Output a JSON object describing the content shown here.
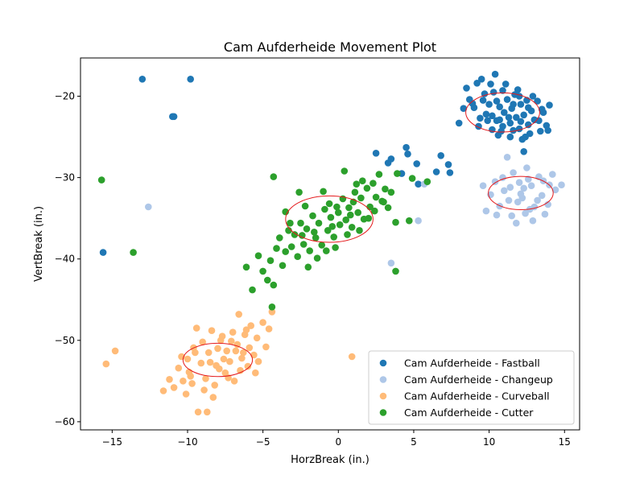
{
  "chart_data": {
    "type": "scatter",
    "title": "Cam Aufderheide Movement Plot",
    "xlabel": "HorzBreak (in.)",
    "ylabel": "VertBreak (in.)",
    "xlim": [
      -17.1,
      16.0
    ],
    "ylim": [
      -61.0,
      -15.3
    ],
    "xticks": [
      -15,
      -10,
      -5,
      0,
      5,
      10,
      15
    ],
    "xtick_labels": [
      "−15",
      "−10",
      "−5",
      "0",
      "5",
      "10",
      "15"
    ],
    "yticks": [
      -60,
      -50,
      -40,
      -30,
      -20
    ],
    "ytick_labels": [
      "−60",
      "−50",
      "−40",
      "−30",
      "−20"
    ],
    "grid": false,
    "legend_position": "lower-right",
    "series": [
      {
        "name": "Cam Aufderheide - Fastball",
        "color": "#1f77b4",
        "points": [
          [
            -13.0,
            -17.9
          ],
          [
            -9.8,
            -17.9
          ],
          [
            -11.0,
            -22.5
          ],
          [
            -10.9,
            -22.5
          ],
          [
            -15.6,
            -39.2
          ],
          [
            2.5,
            -27.0
          ],
          [
            3.3,
            -28.2
          ],
          [
            3.5,
            -27.7
          ],
          [
            4.5,
            -26.3
          ],
          [
            4.6,
            -27.1
          ],
          [
            4.2,
            -29.5
          ],
          [
            5.2,
            -28.3
          ],
          [
            5.3,
            -30.8
          ],
          [
            6.5,
            -29.3
          ],
          [
            6.8,
            -27.3
          ],
          [
            7.3,
            -28.4
          ],
          [
            7.4,
            -29.4
          ],
          [
            12.3,
            -26.8
          ],
          [
            8.0,
            -23.3
          ],
          [
            8.3,
            -21.5
          ],
          [
            8.5,
            -19.0
          ],
          [
            8.7,
            -20.4
          ],
          [
            9.2,
            -18.4
          ],
          [
            9.5,
            -17.9
          ],
          [
            9.6,
            -20.5
          ],
          [
            9.8,
            -22.2
          ],
          [
            10.1,
            -18.5
          ],
          [
            10.3,
            -19.5
          ],
          [
            10.5,
            -20.6
          ],
          [
            10.5,
            -23.0
          ],
          [
            10.7,
            -21.3
          ],
          [
            10.9,
            -19.3
          ],
          [
            11.0,
            -22.0
          ],
          [
            11.2,
            -20.4
          ],
          [
            11.4,
            -23.3
          ],
          [
            11.5,
            -21.5
          ],
          [
            11.7,
            -19.8
          ],
          [
            11.8,
            -22.6
          ],
          [
            12.0,
            -24.0
          ],
          [
            12.1,
            -21.0
          ],
          [
            12.3,
            -22.3
          ],
          [
            12.5,
            -20.5
          ],
          [
            12.6,
            -23.5
          ],
          [
            12.8,
            -21.8
          ],
          [
            13.0,
            -22.9
          ],
          [
            13.2,
            -20.6
          ],
          [
            13.4,
            -24.3
          ],
          [
            13.6,
            -22.0
          ],
          [
            13.8,
            -23.6
          ],
          [
            14.0,
            -21.1
          ],
          [
            10.2,
            -24.1
          ],
          [
            9.9,
            -23.0
          ],
          [
            10.6,
            -24.8
          ],
          [
            11.6,
            -24.2
          ],
          [
            12.2,
            -25.3
          ],
          [
            9.0,
            -21.4
          ],
          [
            9.4,
            -22.7
          ],
          [
            10.0,
            -21.0
          ],
          [
            10.9,
            -23.7
          ],
          [
            11.3,
            -22.6
          ],
          [
            12.7,
            -24.6
          ],
          [
            13.3,
            -23.0
          ],
          [
            12.9,
            -20.0
          ],
          [
            11.1,
            -18.5
          ],
          [
            10.4,
            -17.3
          ],
          [
            11.9,
            -19.2
          ],
          [
            12.4,
            -25.0
          ],
          [
            13.9,
            -24.2
          ],
          [
            9.7,
            -19.7
          ],
          [
            8.9,
            -20.9
          ],
          [
            10.8,
            -24.3
          ],
          [
            11.6,
            -21.0
          ],
          [
            12.1,
            -23.1
          ],
          [
            12.6,
            -21.4
          ],
          [
            13.5,
            -21.6
          ],
          [
            9.3,
            -23.7
          ],
          [
            10.2,
            -22.4
          ],
          [
            11.4,
            -25.0
          ],
          [
            10.7,
            -22.9
          ],
          [
            12.0,
            -20.0
          ]
        ]
      },
      {
        "name": "Cam Aufderheide - Changeup",
        "color": "#aec7e8",
        "points": [
          [
            -12.6,
            -33.6
          ],
          [
            3.5,
            -40.5
          ],
          [
            5.3,
            -35.3
          ],
          [
            5.7,
            -30.8
          ],
          [
            11.2,
            -27.5
          ],
          [
            11.6,
            -29.4
          ],
          [
            11.8,
            -35.6
          ],
          [
            12.2,
            -32.5
          ],
          [
            12.5,
            -28.8
          ],
          [
            12.8,
            -31.0
          ],
          [
            13.0,
            -33.6
          ],
          [
            13.3,
            -29.9
          ],
          [
            13.5,
            -32.2
          ],
          [
            13.7,
            -34.5
          ],
          [
            14.0,
            -30.9
          ],
          [
            14.4,
            -31.5
          ],
          [
            14.8,
            -30.9
          ],
          [
            12.9,
            -35.3
          ],
          [
            12.4,
            -34.4
          ],
          [
            12.0,
            -30.6
          ],
          [
            11.3,
            -32.8
          ],
          [
            11.0,
            -31.6
          ],
          [
            10.7,
            -33.5
          ],
          [
            10.4,
            -30.5
          ],
          [
            10.1,
            -32.1
          ],
          [
            9.8,
            -34.1
          ],
          [
            9.6,
            -31.0
          ],
          [
            11.5,
            -34.7
          ],
          [
            12.6,
            -30.2
          ],
          [
            13.2,
            -32.8
          ],
          [
            13.9,
            -33.3
          ],
          [
            14.2,
            -29.6
          ],
          [
            11.9,
            -33.0
          ],
          [
            12.3,
            -31.3
          ],
          [
            10.9,
            -30.0
          ],
          [
            10.5,
            -34.6
          ],
          [
            13.6,
            -30.4
          ],
          [
            12.7,
            -33.9
          ],
          [
            11.4,
            -31.2
          ],
          [
            12.1,
            -32.0
          ]
        ]
      },
      {
        "name": "Cam Aufderheide - Curveball",
        "color": "#ffbb78",
        "points": [
          [
            -15.4,
            -52.9
          ],
          [
            -14.8,
            -51.3
          ],
          [
            -11.6,
            -56.2
          ],
          [
            -11.2,
            -54.8
          ],
          [
            -10.9,
            -55.8
          ],
          [
            -10.6,
            -53.4
          ],
          [
            -10.4,
            -52.0
          ],
          [
            -10.1,
            -56.6
          ],
          [
            -9.9,
            -53.9
          ],
          [
            -9.7,
            -55.3
          ],
          [
            -9.5,
            -51.5
          ],
          [
            -9.4,
            -48.5
          ],
          [
            -9.3,
            -58.8
          ],
          [
            -9.0,
            -50.2
          ],
          [
            -8.8,
            -54.7
          ],
          [
            -8.7,
            -58.8
          ],
          [
            -8.5,
            -52.7
          ],
          [
            -8.4,
            -48.8
          ],
          [
            -8.2,
            -55.5
          ],
          [
            -8.0,
            -51.0
          ],
          [
            -7.9,
            -53.5
          ],
          [
            -7.7,
            -49.5
          ],
          [
            -7.5,
            -54.0
          ],
          [
            -7.4,
            -51.3
          ],
          [
            -7.2,
            -52.6
          ],
          [
            -7.0,
            -49.0
          ],
          [
            -6.9,
            -55.0
          ],
          [
            -6.7,
            -50.5
          ],
          [
            -6.6,
            -46.8
          ],
          [
            -6.4,
            -52.2
          ],
          [
            -6.2,
            -49.3
          ],
          [
            -6.0,
            -53.2
          ],
          [
            -5.8,
            -48.2
          ],
          [
            -5.6,
            -51.8
          ],
          [
            -5.4,
            -49.7
          ],
          [
            -5.3,
            -52.6
          ],
          [
            -5.0,
            -47.8
          ],
          [
            -4.8,
            -50.8
          ],
          [
            -4.6,
            -48.6
          ],
          [
            -4.4,
            -46.5
          ],
          [
            -8.9,
            -56.1
          ],
          [
            -9.8,
            -54.4
          ],
          [
            -10.3,
            -55.0
          ],
          [
            -8.1,
            -53.1
          ],
          [
            -7.6,
            -52.3
          ],
          [
            -7.8,
            -50.0
          ],
          [
            -6.8,
            -51.3
          ],
          [
            -6.5,
            -53.7
          ],
          [
            -5.9,
            -50.9
          ],
          [
            -5.5,
            -54.0
          ],
          [
            -6.1,
            -48.7
          ],
          [
            -7.3,
            -54.6
          ],
          [
            -8.6,
            -51.5
          ],
          [
            -9.1,
            -52.8
          ],
          [
            -9.6,
            -50.9
          ],
          [
            -10.0,
            -52.3
          ],
          [
            -8.3,
            -57.0
          ],
          [
            -7.1,
            -50.1
          ],
          [
            -6.3,
            -51.5
          ],
          [
            0.9,
            -52.0
          ]
        ]
      },
      {
        "name": "Cam Aufderheide - Cutter",
        "color": "#2ca02c",
        "points": [
          [
            -15.7,
            -30.3
          ],
          [
            -13.6,
            -39.2
          ],
          [
            -6.1,
            -41.0
          ],
          [
            -5.7,
            -43.8
          ],
          [
            -5.3,
            -39.6
          ],
          [
            -5.0,
            -41.5
          ],
          [
            -4.7,
            -42.6
          ],
          [
            -4.5,
            -40.2
          ],
          [
            -4.3,
            -43.2
          ],
          [
            -4.4,
            -45.9
          ],
          [
            -4.3,
            -29.9
          ],
          [
            -4.1,
            -38.7
          ],
          [
            -3.9,
            -37.4
          ],
          [
            -3.7,
            -40.8
          ],
          [
            -3.5,
            -39.1
          ],
          [
            -3.3,
            -36.5
          ],
          [
            -3.1,
            -38.5
          ],
          [
            -2.9,
            -37.0
          ],
          [
            -2.7,
            -39.7
          ],
          [
            -2.5,
            -35.6
          ],
          [
            -2.3,
            -38.2
          ],
          [
            -2.1,
            -36.3
          ],
          [
            -1.9,
            -39.0
          ],
          [
            -1.7,
            -34.7
          ],
          [
            -1.5,
            -37.4
          ],
          [
            -1.3,
            -35.6
          ],
          [
            -1.1,
            -38.3
          ],
          [
            -0.9,
            -33.9
          ],
          [
            -0.7,
            -36.5
          ],
          [
            -0.5,
            -34.9
          ],
          [
            -0.3,
            -37.3
          ],
          [
            -0.1,
            -33.6
          ],
          [
            0.1,
            -35.8
          ],
          [
            0.3,
            -32.6
          ],
          [
            0.5,
            -35.2
          ],
          [
            0.7,
            -33.7
          ],
          [
            0.9,
            -36.1
          ],
          [
            1.1,
            -31.8
          ],
          [
            1.3,
            -34.3
          ],
          [
            1.5,
            -32.5
          ],
          [
            1.7,
            -35.1
          ],
          [
            1.9,
            -31.3
          ],
          [
            2.1,
            -33.6
          ],
          [
            2.3,
            -30.7
          ],
          [
            2.5,
            -32.4
          ],
          [
            2.7,
            -29.6
          ],
          [
            2.9,
            -32.9
          ],
          [
            3.1,
            -31.4
          ],
          [
            3.3,
            -33.7
          ],
          [
            3.5,
            -31.8
          ],
          [
            3.8,
            -35.5
          ],
          [
            3.9,
            -29.5
          ],
          [
            3.8,
            -41.5
          ],
          [
            4.7,
            -35.3
          ],
          [
            4.9,
            -30.1
          ],
          [
            5.9,
            -30.5
          ],
          [
            -2.0,
            -41.0
          ],
          [
            -1.4,
            -39.9
          ],
          [
            -0.8,
            -39.0
          ],
          [
            -0.2,
            -38.6
          ],
          [
            -2.6,
            -31.8
          ],
          [
            -3.2,
            -35.6
          ],
          [
            -1.0,
            -31.7
          ],
          [
            0.4,
            -29.2
          ],
          [
            1.6,
            -30.4
          ],
          [
            -2.2,
            -33.5
          ],
          [
            -3.5,
            -34.2
          ],
          [
            -0.4,
            -36.0
          ],
          [
            0.0,
            -34.3
          ],
          [
            0.6,
            -37.0
          ],
          [
            1.0,
            -33.0
          ],
          [
            1.4,
            -36.5
          ],
          [
            2.0,
            -35.0
          ],
          [
            -1.6,
            -36.7
          ],
          [
            -2.4,
            -37.1
          ],
          [
            -0.6,
            -33.2
          ],
          [
            0.8,
            -34.6
          ],
          [
            1.2,
            -30.8
          ],
          [
            2.4,
            -34.1
          ],
          [
            3.0,
            -33.0
          ]
        ]
      }
    ],
    "ellipses": [
      {
        "series": "Cam Aufderheide - Fastball",
        "cx": 10.9,
        "cy": -22.0,
        "rx": 2.45,
        "ry": 2.4,
        "color": "#e41a1c"
      },
      {
        "series": "Cam Aufderheide - Changeup",
        "cx": 12.1,
        "cy": -31.9,
        "rx": 2.15,
        "ry": 2.05,
        "color": "#e41a1c"
      },
      {
        "series": "Cam Aufderheide - Curveball",
        "cx": -8.0,
        "cy": -52.4,
        "rx": 2.3,
        "ry": 2.05,
        "color": "#e41a1c"
      },
      {
        "series": "Cam Aufderheide - Cutter",
        "cx": -0.6,
        "cy": -35.1,
        "rx": 2.9,
        "ry": 2.85,
        "color": "#e41a1c"
      }
    ]
  }
}
